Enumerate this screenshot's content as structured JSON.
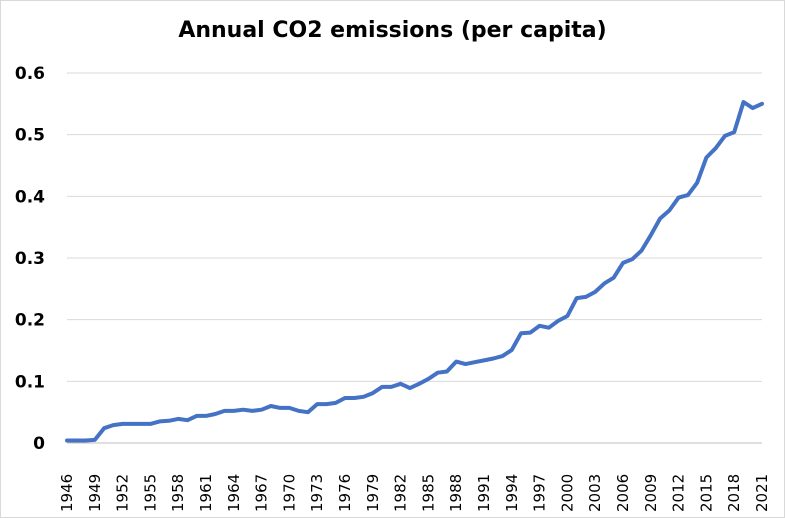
{
  "chart_data": {
    "type": "line",
    "title": "Annual CO2 emissions (per capita)",
    "xlabel": "",
    "ylabel": "",
    "ylim": [
      0,
      0.6
    ],
    "yticks": [
      "0",
      "0.1",
      "0.2",
      "0.3",
      "0.4",
      "0.5",
      "0.6"
    ],
    "xticks": [
      "1946",
      "1949",
      "1952",
      "1955",
      "1958",
      "1961",
      "1964",
      "1967",
      "1970",
      "1973",
      "1976",
      "1979",
      "1982",
      "1985",
      "1988",
      "1991",
      "1994",
      "1997",
      "2000",
      "2003",
      "2006",
      "2009",
      "2012",
      "2015",
      "2018",
      "2021"
    ],
    "grid": "horizontal",
    "legend": "none",
    "series_color": "#4472C4",
    "x": [
      1946,
      1947,
      1948,
      1949,
      1950,
      1951,
      1952,
      1953,
      1954,
      1955,
      1956,
      1957,
      1958,
      1959,
      1960,
      1961,
      1962,
      1963,
      1964,
      1965,
      1966,
      1967,
      1968,
      1969,
      1970,
      1971,
      1972,
      1973,
      1974,
      1975,
      1976,
      1977,
      1978,
      1979,
      1980,
      1981,
      1982,
      1983,
      1984,
      1985,
      1986,
      1987,
      1988,
      1989,
      1990,
      1991,
      1992,
      1993,
      1994,
      1995,
      1996,
      1997,
      1998,
      1999,
      2000,
      2001,
      2002,
      2003,
      2004,
      2005,
      2006,
      2007,
      2008,
      2009,
      2010,
      2011,
      2012,
      2013,
      2014,
      2015,
      2016,
      2017,
      2018,
      2019,
      2020,
      2021
    ],
    "series": [
      {
        "values": [
          0.004,
          0.004,
          0.004,
          0.005,
          0.024,
          0.029,
          0.031,
          0.031,
          0.031,
          0.031,
          0.035,
          0.036,
          0.039,
          0.037,
          0.044,
          0.044,
          0.047,
          0.052,
          0.052,
          0.054,
          0.052,
          0.054,
          0.06,
          0.057,
          0.057,
          0.052,
          0.05,
          0.063,
          0.063,
          0.065,
          0.073,
          0.073,
          0.075,
          0.081,
          0.091,
          0.091,
          0.096,
          0.089,
          0.096,
          0.104,
          0.114,
          0.116,
          0.132,
          0.128,
          0.131,
          0.134,
          0.137,
          0.141,
          0.151,
          0.178,
          0.179,
          0.19,
          0.187,
          0.198,
          0.206,
          0.235,
          0.237,
          0.245,
          0.259,
          0.268,
          0.292,
          0.298,
          0.312,
          0.337,
          0.364,
          0.377,
          0.398,
          0.402,
          0.422,
          0.463,
          0.478,
          0.498,
          0.504,
          0.553,
          0.543,
          0.55
        ]
      }
    ]
  }
}
